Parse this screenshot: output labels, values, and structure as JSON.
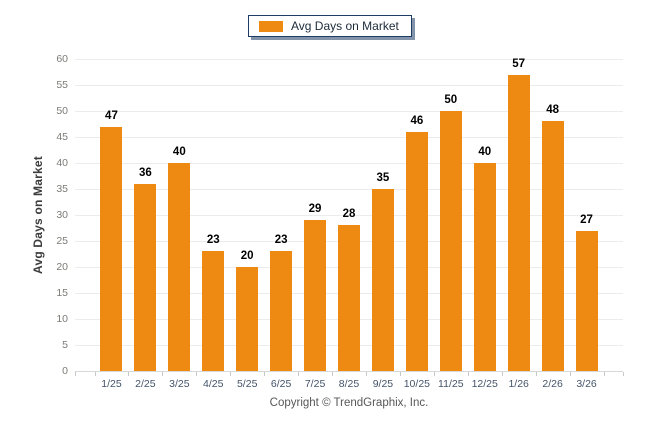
{
  "chart_data": {
    "type": "bar",
    "title": "",
    "categories": [
      "1/25",
      "2/25",
      "3/25",
      "4/25",
      "5/25",
      "6/25",
      "7/25",
      "8/25",
      "9/25",
      "10/25",
      "11/25",
      "12/25",
      "1/26",
      "2/26",
      "3/26"
    ],
    "values": [
      47,
      36,
      40,
      23,
      20,
      23,
      29,
      28,
      35,
      46,
      50,
      40,
      57,
      48,
      27
    ],
    "series_name": "Avg Days on Market",
    "xlabel": "",
    "ylabel": "Avg Days on Market",
    "ylim": [
      0,
      60
    ],
    "ytick_step": 5,
    "grid": true,
    "legend_position": "top-center",
    "bar_color": "#EE8A11",
    "value_labels_shown": true
  },
  "legend": {
    "label": "Avg Days on Market",
    "swatch_color": "#EE8A11"
  },
  "footer": {
    "copyright": "Copyright © TrendGraphix, Inc."
  }
}
